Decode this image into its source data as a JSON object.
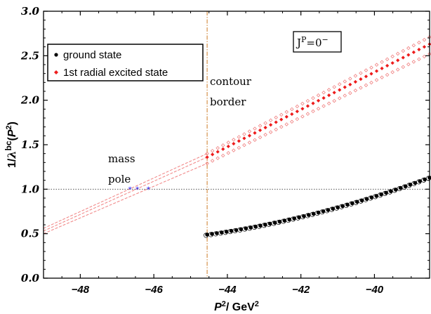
{
  "chart_data": {
    "type": "scatter",
    "title": "",
    "xlabel": "P²/ GeV²",
    "ylabel": "1/ λᵇᶜ(P²)",
    "xlim": [
      -49,
      -38.5
    ],
    "ylim": [
      0.0,
      3.0
    ],
    "x_ticks": [
      -48,
      -46,
      -44,
      -42,
      -40
    ],
    "x_tick_labels": [
      "−48",
      "−46",
      "−44",
      "−42",
      "−40"
    ],
    "y_ticks": [
      0.0,
      0.5,
      1.0,
      1.5,
      2.0,
      2.5,
      3.0
    ],
    "y_tick_labels": [
      "0.0",
      "0.5",
      "1.0",
      "1.5",
      "2.0",
      "2.5",
      "3.0"
    ],
    "grid": false,
    "legend_position": "top-left",
    "state_label": {
      "base": "J",
      "sup1": "P",
      "mid": "=0",
      "sup2": "−"
    },
    "annotations": {
      "contour_border": [
        "contour",
        "border"
      ],
      "mass_pole": [
        "mass",
        "pole"
      ]
    },
    "reference_lines": {
      "horizontal_y": 1.0,
      "vertical_x": -44.55
    },
    "series": [
      {
        "name": "ground state",
        "color": "#000000",
        "marker": "filled-circle",
        "x_start": -44.55,
        "x_end": -38.5,
        "y_start": 0.49,
        "y_end": 1.13,
        "curve": "slightly-convex"
      },
      {
        "name": "1st radial excited state",
        "color": "#ee1c1c",
        "marker": "filled-diamond",
        "x_start": -44.55,
        "x_end": -38.5,
        "y_start": 1.36,
        "y_end": 2.63,
        "band_upper": [
          1.4,
          2.71
        ],
        "band_lower": [
          1.29,
          2.52
        ],
        "extrapolation_x": [
          -49,
          -44.55
        ],
        "extrapolation_y": [
          0.53,
          1.36
        ],
        "extrapolation_upper_y": [
          0.56,
          1.4
        ],
        "extrapolation_lower_y": [
          0.5,
          1.29
        ]
      }
    ],
    "mass_pole_points": [
      {
        "x": -46.65,
        "y": 1.0
      },
      {
        "x": -46.45,
        "y": 1.0
      },
      {
        "x": -46.15,
        "y": 1.0
      }
    ]
  },
  "colors": {
    "ground": "#000000",
    "excited": "#ee1c1c",
    "band": "#f08080",
    "contour_line": "#d2883a",
    "pole_star": "#1a1aee"
  }
}
